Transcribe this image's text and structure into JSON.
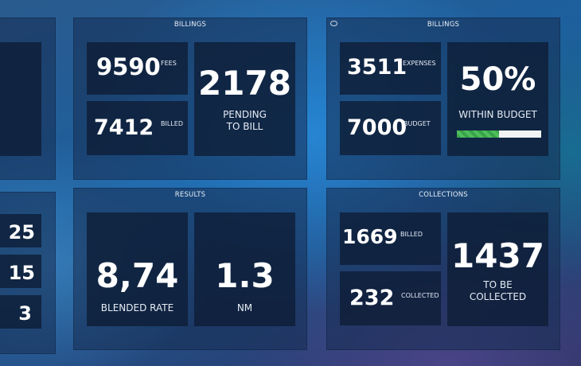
{
  "billings_left": {
    "title": "BILLINGS",
    "fees_value": "9590",
    "fees_label": "FEES",
    "billed_value": "7412",
    "billed_label": "BILLED",
    "pending_value": "2178",
    "pending_label_1": "PENDING",
    "pending_label_2": "TO BILL"
  },
  "billings_right": {
    "title": "BILLINGS",
    "expenses_value": "3511",
    "expenses_label": "EXPENSES",
    "budget_value": "7000",
    "budget_label": "BUDGET",
    "within_value": "50%",
    "within_label": "WITHIN BUDGET",
    "progress_fraction": 0.5,
    "progress_color": "#4fbf5c"
  },
  "results": {
    "title": "RESULTS",
    "blended_value": "8,74",
    "blended_label": "BLENDED RATE",
    "nm_value": "1.3",
    "nm_label": "NM"
  },
  "collections": {
    "title": "COLLECTIONS",
    "billed_value": "1669",
    "billed_label": "BILLED",
    "collected_value": "232",
    "collected_label": "COLLECTED",
    "tobe_value": "1437",
    "tobe_label_1": "TO BE",
    "tobe_label_2": "COLLECTED"
  },
  "left_list": {
    "items": [
      "25",
      "15",
      "3"
    ]
  }
}
